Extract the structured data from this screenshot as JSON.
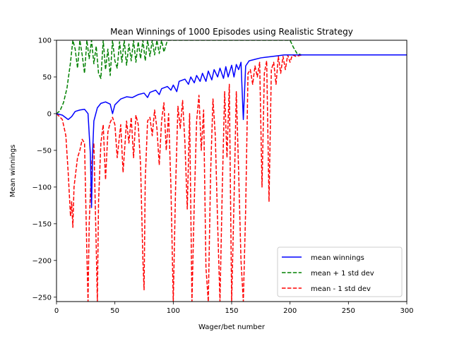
{
  "chart_data": {
    "type": "line",
    "title": "Mean Winnings of 1000 Episodes using Realistic Strategy",
    "xlabel": "Wager/bet number",
    "ylabel": "Mean winnings",
    "xlim": [
      0,
      300
    ],
    "ylim": [
      -256,
      100
    ],
    "xticks": [
      0,
      50,
      100,
      150,
      200,
      250,
      300
    ],
    "yticks": [
      100,
      50,
      0,
      -50,
      -100,
      -150,
      -200,
      -250
    ],
    "xtick_labels": [
      "0",
      "50",
      "100",
      "150",
      "200",
      "250",
      "300"
    ],
    "ytick_labels": [
      "100",
      "50",
      "0",
      "−50",
      "−100",
      "−150",
      "−200",
      "−250"
    ],
    "grid": false,
    "legend_position": "lower-right",
    "legend": [
      "mean winnings",
      "mean + 1 std dev",
      "mean - 1 std dev"
    ],
    "series": [
      {
        "name": "mean winnings",
        "color": "#0000ff",
        "style": "solid",
        "points": [
          [
            0,
            0
          ],
          [
            5,
            -2
          ],
          [
            10,
            -8
          ],
          [
            13,
            -4
          ],
          [
            16,
            3
          ],
          [
            20,
            5
          ],
          [
            24,
            6
          ],
          [
            27,
            0
          ],
          [
            29,
            -55
          ],
          [
            30,
            -128
          ],
          [
            31,
            -50
          ],
          [
            32,
            -10
          ],
          [
            35,
            8
          ],
          [
            38,
            14
          ],
          [
            42,
            16
          ],
          [
            46,
            13
          ],
          [
            48,
            0
          ],
          [
            50,
            12
          ],
          [
            55,
            20
          ],
          [
            60,
            23
          ],
          [
            65,
            22
          ],
          [
            70,
            26
          ],
          [
            75,
            28
          ],
          [
            78,
            22
          ],
          [
            80,
            29
          ],
          [
            85,
            32
          ],
          [
            88,
            26
          ],
          [
            90,
            34
          ],
          [
            95,
            37
          ],
          [
            98,
            32
          ],
          [
            100,
            39
          ],
          [
            103,
            30
          ],
          [
            105,
            44
          ],
          [
            110,
            47
          ],
          [
            113,
            40
          ],
          [
            115,
            50
          ],
          [
            118,
            42
          ],
          [
            120,
            52
          ],
          [
            123,
            44
          ],
          [
            125,
            55
          ],
          [
            128,
            44
          ],
          [
            130,
            58
          ],
          [
            133,
            46
          ],
          [
            135,
            60
          ],
          [
            138,
            50
          ],
          [
            140,
            62
          ],
          [
            143,
            48
          ],
          [
            145,
            64
          ],
          [
            147,
            50
          ],
          [
            150,
            66
          ],
          [
            152,
            50
          ],
          [
            154,
            67
          ],
          [
            156,
            60
          ],
          [
            158,
            70
          ],
          [
            160,
            -8
          ],
          [
            162,
            65
          ],
          [
            165,
            72
          ],
          [
            170,
            74
          ],
          [
            175,
            76
          ],
          [
            180,
            77
          ],
          [
            185,
            78
          ],
          [
            190,
            79
          ],
          [
            195,
            80
          ],
          [
            200,
            80
          ],
          [
            210,
            80
          ],
          [
            250,
            80
          ],
          [
            300,
            80
          ]
        ]
      },
      {
        "name": "mean + 1 std dev",
        "color": "#008000",
        "style": "dashed",
        "points": [
          [
            0,
            0
          ],
          [
            3,
            4
          ],
          [
            6,
            15
          ],
          [
            9,
            35
          ],
          [
            12,
            70
          ],
          [
            14,
            100
          ],
          [
            16,
            88
          ],
          [
            18,
            62
          ],
          [
            20,
            100
          ],
          [
            22,
            80
          ],
          [
            24,
            55
          ],
          [
            26,
            100
          ],
          [
            28,
            75
          ],
          [
            30,
            100
          ],
          [
            32,
            68
          ],
          [
            34,
            92
          ],
          [
            36,
            55
          ],
          [
            38,
            48
          ],
          [
            40,
            100
          ],
          [
            42,
            60
          ],
          [
            44,
            88
          ],
          [
            46,
            52
          ],
          [
            48,
            100
          ],
          [
            50,
            72
          ],
          [
            52,
            62
          ],
          [
            54,
            98
          ],
          [
            56,
            70
          ],
          [
            58,
            100
          ],
          [
            60,
            66
          ],
          [
            62,
            95
          ],
          [
            64,
            72
          ],
          [
            66,
            100
          ],
          [
            68,
            70
          ],
          [
            70,
            98
          ],
          [
            72,
            75
          ],
          [
            74,
            100
          ],
          [
            76,
            72
          ],
          [
            78,
            100
          ],
          [
            80,
            78
          ],
          [
            82,
            100
          ],
          [
            84,
            80
          ],
          [
            86,
            100
          ],
          [
            88,
            82
          ],
          [
            90,
            100
          ],
          [
            92,
            84
          ],
          [
            95,
            100
          ],
          [
            100,
            100
          ],
          [
            200,
            100
          ],
          [
            203,
            90
          ],
          [
            206,
            82
          ],
          [
            210,
            80
          ],
          [
            250,
            80
          ],
          [
            300,
            80
          ]
        ]
      },
      {
        "name": "mean - 1 std dev",
        "color": "#ff0000",
        "style": "dashed",
        "points": [
          [
            0,
            0
          ],
          [
            5,
            -8
          ],
          [
            8,
            -30
          ],
          [
            10,
            -80
          ],
          [
            12,
            -140
          ],
          [
            13,
            -120
          ],
          [
            14,
            -155
          ],
          [
            15,
            -100
          ],
          [
            18,
            -60
          ],
          [
            20,
            -50
          ],
          [
            22,
            -35
          ],
          [
            24,
            -40
          ],
          [
            26,
            -190
          ],
          [
            27,
            -256
          ],
          [
            28,
            -150
          ],
          [
            30,
            -70
          ],
          [
            32,
            -40
          ],
          [
            34,
            -180
          ],
          [
            35,
            -256
          ],
          [
            36,
            -120
          ],
          [
            38,
            -40
          ],
          [
            40,
            -15
          ],
          [
            42,
            -90
          ],
          [
            44,
            -25
          ],
          [
            46,
            -12
          ],
          [
            48,
            -5
          ],
          [
            50,
            -15
          ],
          [
            52,
            -60
          ],
          [
            55,
            -15
          ],
          [
            57,
            -80
          ],
          [
            60,
            -10
          ],
          [
            62,
            -40
          ],
          [
            64,
            -5
          ],
          [
            66,
            -60
          ],
          [
            68,
            -2
          ],
          [
            70,
            -15
          ],
          [
            72,
            -70
          ],
          [
            74,
            -200
          ],
          [
            75,
            -240
          ],
          [
            76,
            -90
          ],
          [
            78,
            -10
          ],
          [
            80,
            -5
          ],
          [
            82,
            -30
          ],
          [
            84,
            5
          ],
          [
            86,
            -20
          ],
          [
            88,
            -70
          ],
          [
            90,
            -10
          ],
          [
            92,
            15
          ],
          [
            94,
            -50
          ],
          [
            96,
            0
          ],
          [
            98,
            -100
          ],
          [
            100,
            -256
          ],
          [
            102,
            -100
          ],
          [
            104,
            10
          ],
          [
            106,
            -20
          ],
          [
            108,
            18
          ],
          [
            110,
            -40
          ],
          [
            112,
            -130
          ],
          [
            114,
            0
          ],
          [
            116,
            -256
          ],
          [
            118,
            -120
          ],
          [
            120,
            -10
          ],
          [
            122,
            25
          ],
          [
            124,
            -50
          ],
          [
            126,
            5
          ],
          [
            128,
            -210
          ],
          [
            130,
            -256
          ],
          [
            132,
            -80
          ],
          [
            134,
            20
          ],
          [
            136,
            -30
          ],
          [
            138,
            -150
          ],
          [
            140,
            -256
          ],
          [
            142,
            -100
          ],
          [
            144,
            30
          ],
          [
            146,
            -60
          ],
          [
            148,
            40
          ],
          [
            150,
            -256
          ],
          [
            152,
            -120
          ],
          [
            154,
            30
          ],
          [
            156,
            -80
          ],
          [
            158,
            -200
          ],
          [
            160,
            -256
          ],
          [
            162,
            -130
          ],
          [
            164,
            55
          ],
          [
            166,
            60
          ],
          [
            168,
            40
          ],
          [
            170,
            65
          ],
          [
            172,
            50
          ],
          [
            174,
            70
          ],
          [
            176,
            -100
          ],
          [
            178,
            55
          ],
          [
            180,
            72
          ],
          [
            182,
            -120
          ],
          [
            184,
            60
          ],
          [
            186,
            70
          ],
          [
            188,
            40
          ],
          [
            190,
            78
          ],
          [
            192,
            55
          ],
          [
            194,
            78
          ],
          [
            196,
            60
          ],
          [
            198,
            80
          ],
          [
            200,
            70
          ],
          [
            202,
            80
          ],
          [
            205,
            78
          ],
          [
            210,
            80
          ],
          [
            250,
            80
          ],
          [
            300,
            80
          ]
        ]
      }
    ]
  }
}
